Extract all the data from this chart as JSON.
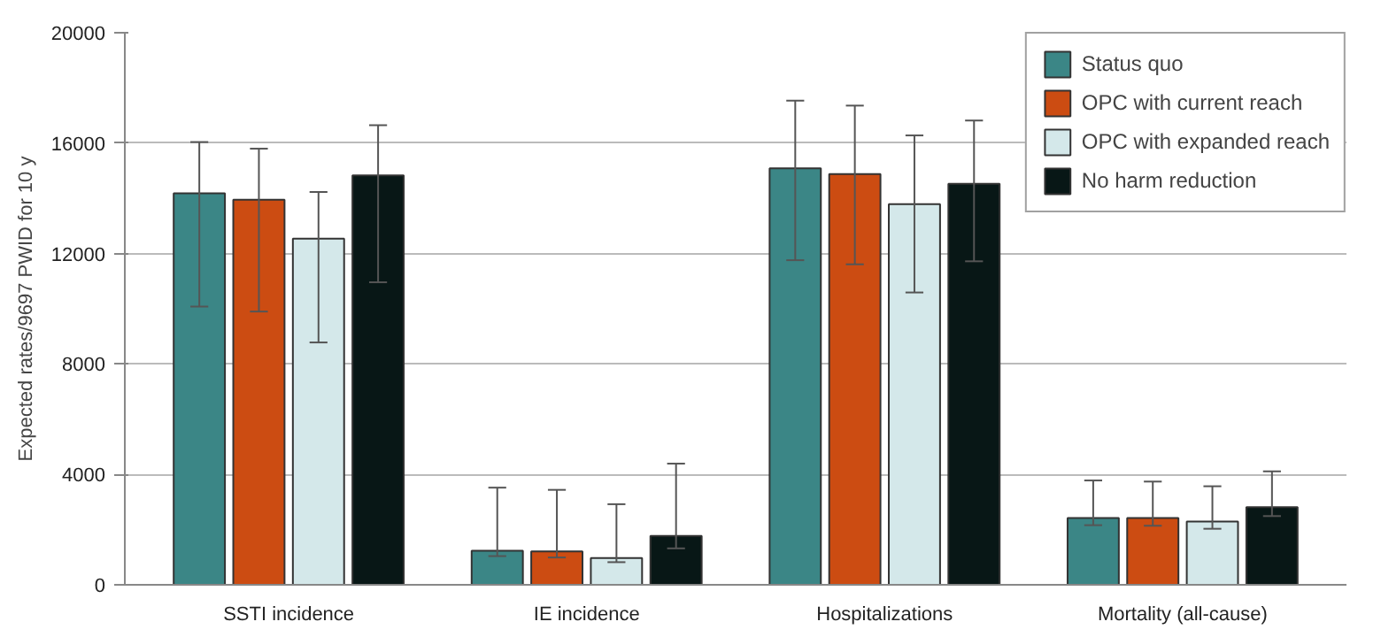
{
  "chart_data": {
    "type": "bar",
    "ylabel": "Expected rates/9697 PWID for 10 y",
    "categories": [
      "SSTI incidence",
      "IE incidence",
      "Hospitalizations",
      "Mortality (all-cause)"
    ],
    "series": [
      {
        "name": "Status quo",
        "color": "#3b8686",
        "values": [
          14180,
          1230,
          15090,
          2420
        ],
        "errors": [
          [
            10080,
            16040
          ],
          [
            1040,
            3520
          ],
          [
            11760,
            17540
          ],
          [
            2160,
            3780
          ]
        ]
      },
      {
        "name": "OPC with current reach",
        "color": "#cc4c12",
        "values": [
          13950,
          1210,
          14880,
          2420
        ],
        "errors": [
          [
            9900,
            15800
          ],
          [
            990,
            3440
          ],
          [
            11610,
            17360
          ],
          [
            2140,
            3740
          ]
        ]
      },
      {
        "name": "OPC with expanded reach",
        "color": "#d4e8ea",
        "values": [
          12540,
          970,
          13790,
          2290
        ],
        "errors": [
          [
            8780,
            14230
          ],
          [
            820,
            2920
          ],
          [
            10590,
            16280
          ],
          [
            2030,
            3570
          ]
        ]
      },
      {
        "name": "No harm reduction",
        "color": "#081716",
        "values": [
          14830,
          1770,
          14530,
          2810
        ],
        "errors": [
          [
            10960,
            16650
          ],
          [
            1320,
            4390
          ],
          [
            11720,
            16820
          ],
          [
            2490,
            4110
          ]
        ]
      }
    ],
    "ylim": [
      0,
      20000
    ],
    "yticks": [
      0,
      4000,
      8000,
      12000,
      16000,
      20000
    ],
    "grid": "y",
    "legend": "top right"
  }
}
